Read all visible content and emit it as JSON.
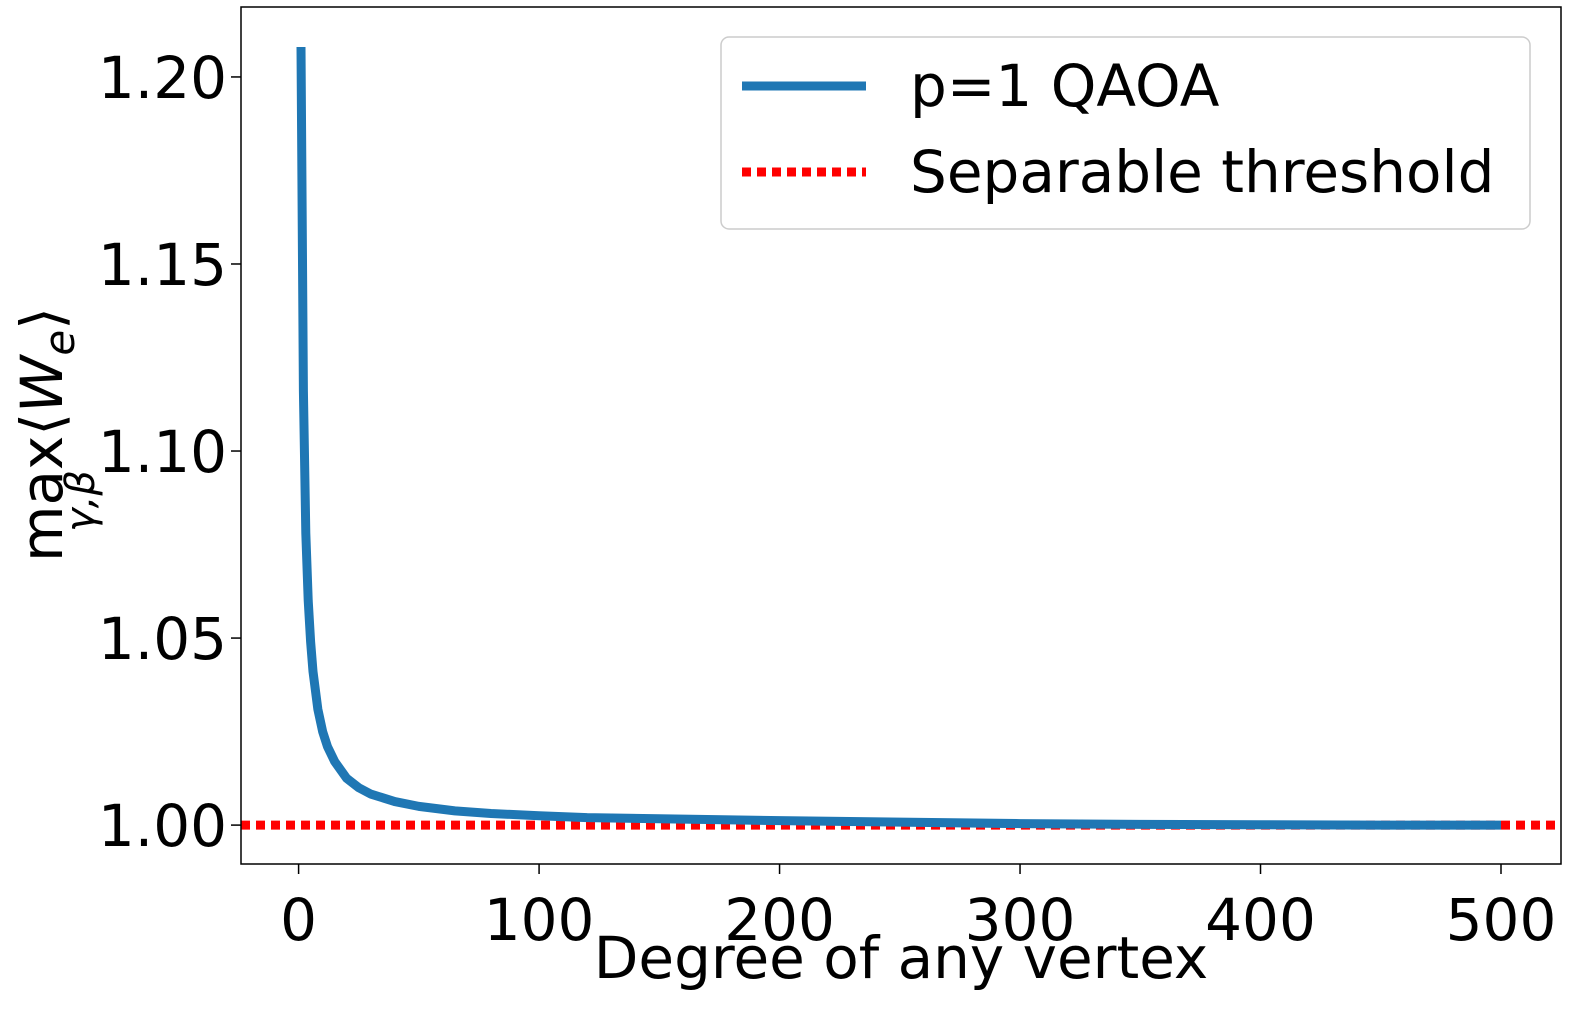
{
  "chart_data": {
    "type": "line",
    "xlabel": "Degree of any vertex",
    "ylabel": {
      "op": "max",
      "op_sub": "γ,β",
      "open": "⟨",
      "var": "W",
      "var_sub": "e",
      "close": "⟩"
    },
    "x": [
      1,
      2,
      3,
      4,
      5,
      6,
      8,
      10,
      12,
      15,
      20,
      25,
      30,
      40,
      50,
      65,
      80,
      100,
      120,
      150,
      200,
      250,
      300,
      350,
      400,
      450,
      500
    ],
    "series": [
      {
        "name": "p=1 QAOA",
        "color": "#1f77b4",
        "values": [
          1.208,
          1.116,
          1.078,
          1.06,
          1.049,
          1.041,
          1.031,
          1.025,
          1.021,
          1.017,
          1.0125,
          1.01,
          1.0083,
          1.0063,
          1.005,
          1.0038,
          1.0031,
          1.0025,
          1.002,
          1.0017,
          1.0012,
          1.0008,
          1.0004,
          1.0002,
          1.0001,
          1.0,
          1.0
        ]
      }
    ],
    "hlines": [
      {
        "name": "Separable threshold",
        "color": "#ff0000",
        "value": 1,
        "style": "dotted"
      }
    ],
    "xlim": [
      -23.95,
      524.95
    ],
    "ylim": [
      0.9896,
      1.2187
    ],
    "xticks": [
      0,
      100,
      200,
      300,
      400,
      500
    ],
    "yticks": [
      {
        "value": 1,
        "label": "1.00"
      },
      {
        "value": 1.05,
        "label": "1.05"
      },
      {
        "value": 1.1,
        "label": "1.10"
      },
      {
        "value": 1.15,
        "label": "1.15"
      },
      {
        "value": 1.2,
        "label": "1.20"
      }
    ],
    "legend": "upper right",
    "grid": false
  }
}
